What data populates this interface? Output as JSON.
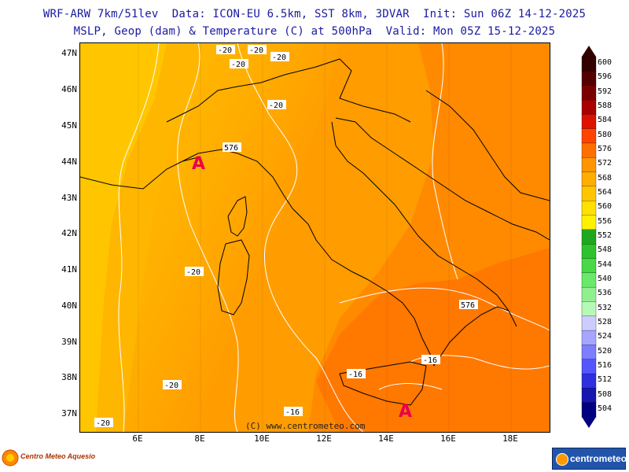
{
  "header": {
    "line1": "WRF-ARW 7km/51lev  Data: ICON-EU 6.5km, SST 8km, 3DVAR  Init: Sun 06Z 14-12-2025",
    "line2": "MSLP, Geop (dam) & Temperature (C) at 500hPa  Valid: Mon 05Z 15-12-2025"
  },
  "map": {
    "copyright": "(C) www.centrometeo.com",
    "lat_labels": [
      "47N",
      "46N",
      "45N",
      "44N",
      "43N",
      "42N",
      "41N",
      "40N",
      "39N",
      "38N",
      "37N"
    ],
    "lon_labels": [
      "6E",
      "8E",
      "10E",
      "12E",
      "14E",
      "16E",
      "18E"
    ],
    "temp_labels": [
      "-20",
      "-20",
      "-20",
      "-20",
      "-20",
      "-20",
      "-20",
      "-20",
      "-16",
      "-16",
      "-16"
    ],
    "geop_labels": [
      "576",
      "576"
    ],
    "pressure_marks": [
      "A",
      "A"
    ]
  },
  "colorbar": {
    "labels": [
      "600",
      "596",
      "592",
      "588",
      "584",
      "580",
      "576",
      "572",
      "568",
      "564",
      "560",
      "556",
      "552",
      "548",
      "544",
      "540",
      "536",
      "532",
      "528",
      "524",
      "520",
      "516",
      "512",
      "508",
      "504"
    ],
    "colors": [
      "#330000",
      "#550000",
      "#7a0000",
      "#aa0000",
      "#dd1100",
      "#ff4400",
      "#ff6f00",
      "#ff9500",
      "#ffae00",
      "#ffc600",
      "#ffe000",
      "#fff200",
      "#1fa81f",
      "#2ec22e",
      "#48d848",
      "#6ae86a",
      "#90f090",
      "#b6f8b6",
      "#ccccff",
      "#a6a6ff",
      "#7d7dff",
      "#5555ff",
      "#2f2fe0",
      "#1616b0",
      "#000080"
    ]
  },
  "logos": {
    "left_text": "Centro Meteo Aquesio",
    "right_text": "centrometeo"
  }
}
